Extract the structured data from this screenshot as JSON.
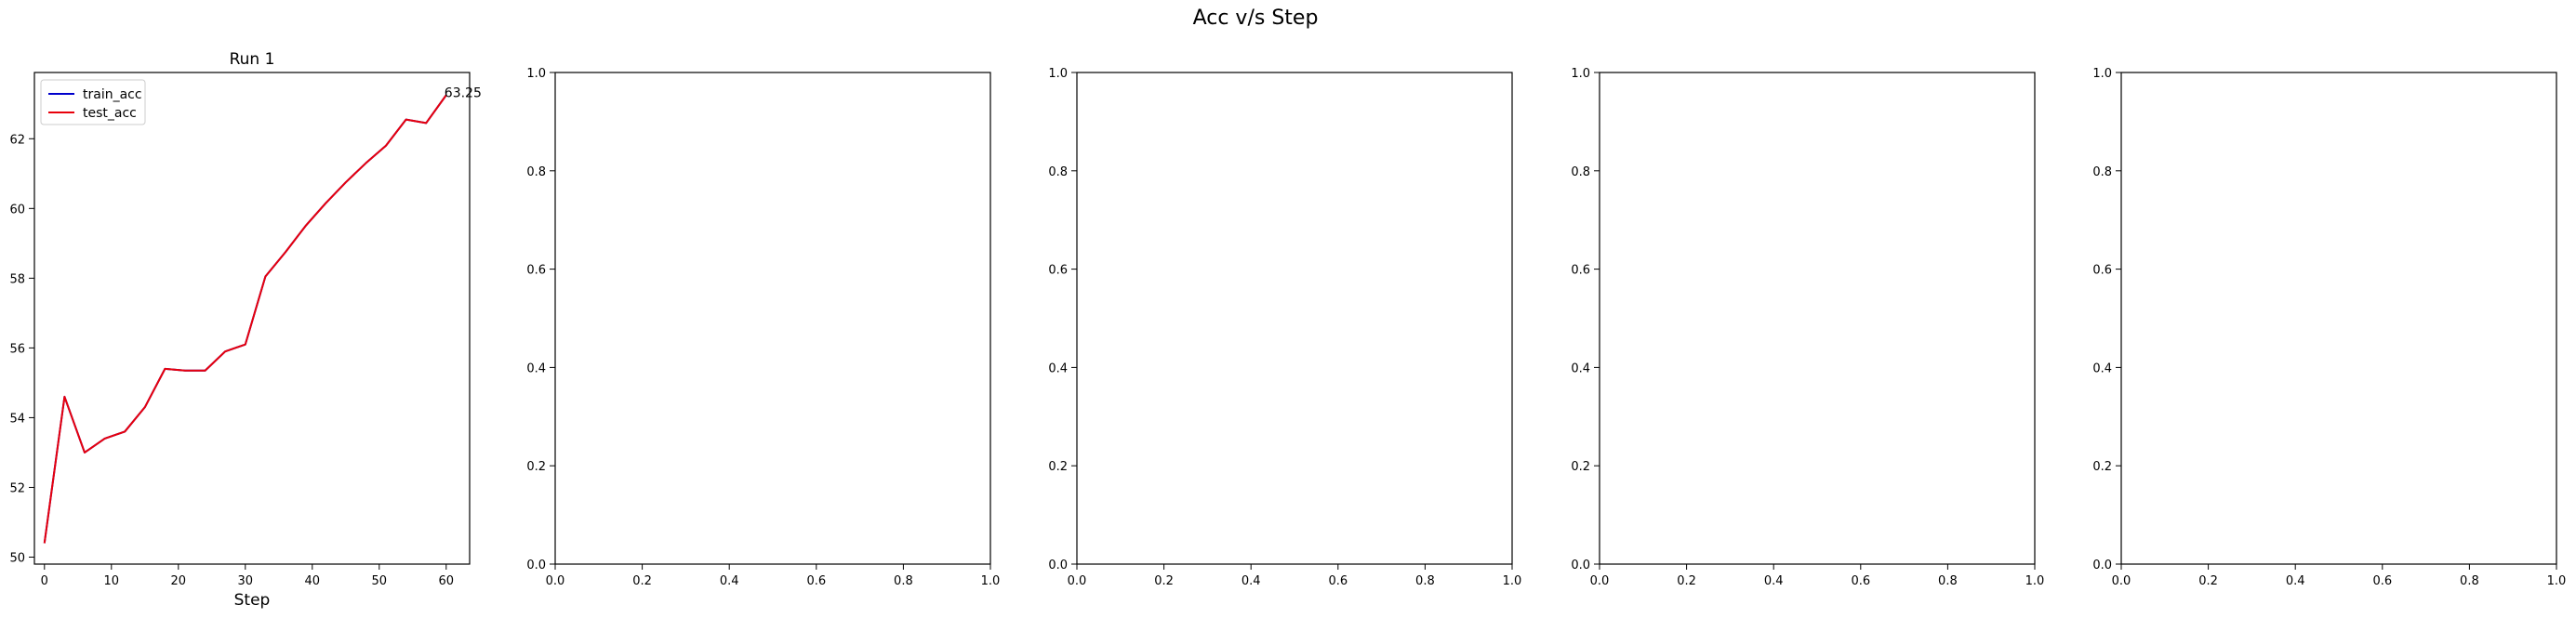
{
  "figure": {
    "title": "Acc v/s Step"
  },
  "chart_data": [
    {
      "type": "line",
      "title": "Run 1",
      "xlabel": "Step",
      "ylabel": "",
      "xlim": [
        -1.5,
        63.5
      ],
      "ylim": [
        49.8,
        63.9
      ],
      "xticks": [
        0,
        10,
        20,
        30,
        40,
        50,
        60
      ],
      "yticks": [
        50,
        52,
        54,
        56,
        58,
        60,
        62
      ],
      "legend": {
        "placement": "top-left",
        "entries": [
          "train_acc",
          "test_acc"
        ]
      },
      "series": [
        {
          "name": "train_acc",
          "color": "#0000cc",
          "x": [
            0,
            3,
            6,
            9,
            12,
            15,
            18,
            21,
            24,
            27,
            30,
            33,
            36,
            39,
            42,
            45,
            48,
            51,
            54,
            57,
            60
          ],
          "y": [
            50.4,
            54.6,
            53.0,
            53.4,
            53.6,
            54.3,
            55.4,
            55.35,
            55.35,
            55.9,
            56.1,
            58.05,
            58.75,
            59.5,
            60.15,
            60.75,
            61.3,
            61.8,
            62.55,
            62.45,
            63.25
          ]
        },
        {
          "name": "test_acc",
          "color": "#e8000b",
          "x": [
            0,
            3,
            6,
            9,
            12,
            15,
            18,
            21,
            24,
            27,
            30,
            33,
            36,
            39,
            42,
            45,
            48,
            51,
            54,
            57,
            60
          ],
          "y": [
            50.4,
            54.6,
            53.0,
            53.4,
            53.6,
            54.3,
            55.4,
            55.35,
            55.35,
            55.9,
            56.1,
            58.05,
            58.75,
            59.5,
            60.15,
            60.75,
            61.3,
            61.8,
            62.55,
            62.45,
            63.25
          ]
        }
      ],
      "annotations": [
        {
          "text": "63.25",
          "x": 60,
          "y": 63.25
        }
      ]
    },
    {
      "type": "line",
      "title": "",
      "xlabel": "",
      "ylabel": "",
      "xlim": [
        0,
        1
      ],
      "ylim": [
        0,
        1
      ],
      "xticks": [
        0.0,
        0.2,
        0.4,
        0.6,
        0.8,
        1.0
      ],
      "yticks": [
        0.0,
        0.2,
        0.4,
        0.6,
        0.8,
        1.0
      ],
      "series": []
    },
    {
      "type": "line",
      "title": "",
      "xlabel": "",
      "ylabel": "",
      "xlim": [
        0,
        1
      ],
      "ylim": [
        0,
        1
      ],
      "xticks": [
        0.0,
        0.2,
        0.4,
        0.6,
        0.8,
        1.0
      ],
      "yticks": [
        0.0,
        0.2,
        0.4,
        0.6,
        0.8,
        1.0
      ],
      "series": []
    },
    {
      "type": "line",
      "title": "",
      "xlabel": "",
      "ylabel": "",
      "xlim": [
        0,
        1
      ],
      "ylim": [
        0,
        1
      ],
      "xticks": [
        0.0,
        0.2,
        0.4,
        0.6,
        0.8,
        1.0
      ],
      "yticks": [
        0.0,
        0.2,
        0.4,
        0.6,
        0.8,
        1.0
      ],
      "series": []
    },
    {
      "type": "line",
      "title": "",
      "xlabel": "",
      "ylabel": "",
      "xlim": [
        0,
        1
      ],
      "ylim": [
        0,
        1
      ],
      "xticks": [
        0.0,
        0.2,
        0.4,
        0.6,
        0.8,
        1.0
      ],
      "yticks": [
        0.0,
        0.2,
        0.4,
        0.6,
        0.8,
        1.0
      ],
      "series": []
    }
  ]
}
